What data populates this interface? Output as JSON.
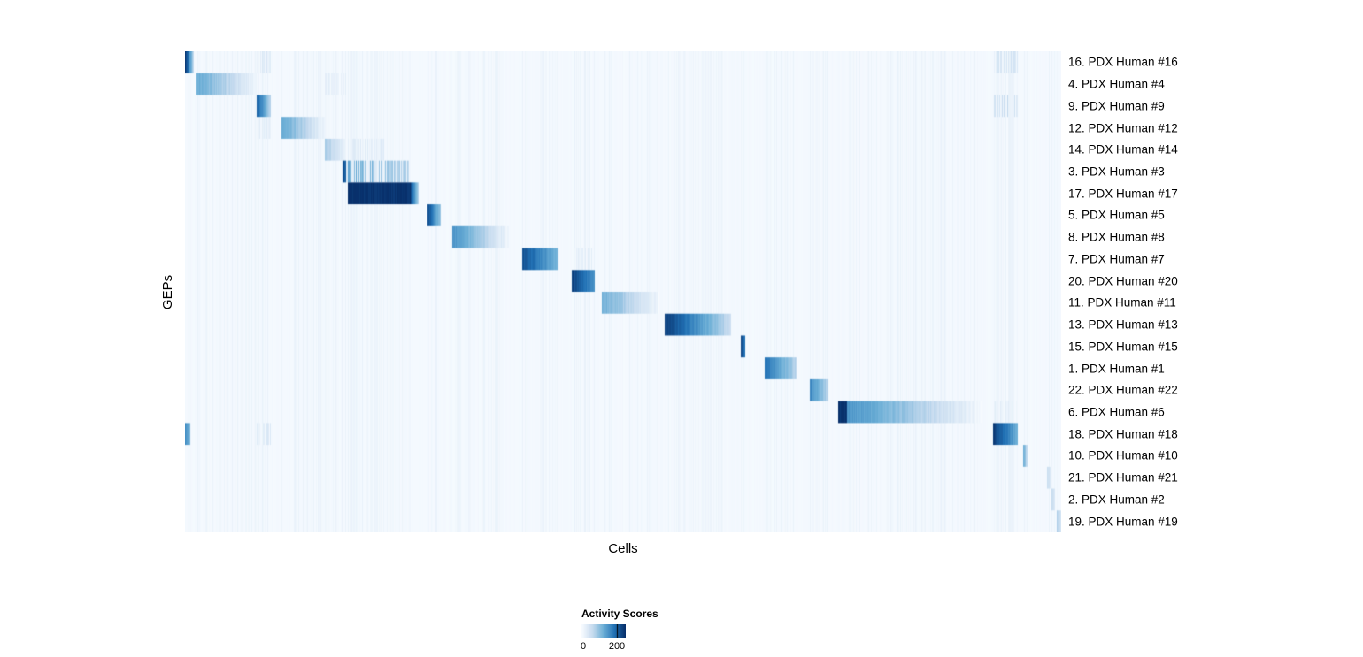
{
  "chart_data": {
    "type": "heatmap",
    "title": "",
    "xlabel": "Cells",
    "ylabel": "GEPs",
    "grid": false,
    "background_value": 2,
    "colorscale": {
      "name": "Blues",
      "stops": [
        "#f7fbff",
        "#c6dbef",
        "#6baed6",
        "#2171b5",
        "#08306b"
      ],
      "vmin": 0,
      "vmax": 250
    },
    "legend": {
      "title": "Activity Scores",
      "ticks": [
        0,
        200
      ],
      "tick_labels": [
        "0",
        "200"
      ],
      "position": "bottom"
    },
    "x_axis_note": "cells ordered by GEP assignment; x positions given as fractions 0-1 of the cell axis",
    "rows": [
      {
        "label": "16. PDX Human #16",
        "segments": [
          {
            "x0": 0.0,
            "x1": 0.01,
            "v0": 235,
            "v1": 70
          }
        ]
      },
      {
        "label": "4. PDX Human #4",
        "segments": [
          {
            "x0": 0.013,
            "x1": 0.085,
            "v0": 125,
            "v1": 8
          }
        ]
      },
      {
        "label": "9. PDX Human #9",
        "segments": [
          {
            "x0": 0.082,
            "x1": 0.098,
            "v0": 205,
            "v1": 70
          }
        ]
      },
      {
        "label": "12. PDX Human #12",
        "segments": [
          {
            "x0": 0.11,
            "x1": 0.16,
            "v0": 135,
            "v1": 10
          }
        ]
      },
      {
        "label": "14. PDX Human #14",
        "segments": [
          {
            "x0": 0.16,
            "x1": 0.184,
            "v0": 80,
            "v1": 15
          }
        ]
      },
      {
        "label": "3. PDX Human #3",
        "segments": [
          {
            "x0": 0.18,
            "x1": 0.184,
            "v0": 215,
            "v1": 200
          },
          {
            "x0": 0.184,
            "x1": 0.256,
            "v0": 150,
            "v1": 80,
            "striped": true
          }
        ]
      },
      {
        "label": "17. PDX Human #17",
        "segments": [
          {
            "x0": 0.186,
            "x1": 0.258,
            "v0": 250,
            "v1": 245
          },
          {
            "x0": 0.258,
            "x1": 0.267,
            "v0": 220,
            "v1": 70
          }
        ]
      },
      {
        "label": "5. PDX Human #5",
        "segments": [
          {
            "x0": 0.277,
            "x1": 0.292,
            "v0": 220,
            "v1": 95
          }
        ]
      },
      {
        "label": "8. PDX Human #8",
        "segments": [
          {
            "x0": 0.305,
            "x1": 0.37,
            "v0": 150,
            "v1": 10
          }
        ]
      },
      {
        "label": "7. PDX Human #7",
        "segments": [
          {
            "x0": 0.385,
            "x1": 0.426,
            "v0": 215,
            "v1": 110
          }
        ]
      },
      {
        "label": "20. PDX Human #20",
        "segments": [
          {
            "x0": 0.441,
            "x1": 0.468,
            "v0": 230,
            "v1": 150
          }
        ]
      },
      {
        "label": "11. PDX Human #11",
        "segments": [
          {
            "x0": 0.476,
            "x1": 0.541,
            "v0": 120,
            "v1": 8
          }
        ]
      },
      {
        "label": "13. PDX Human #13",
        "segments": [
          {
            "x0": 0.547,
            "x1": 0.623,
            "v0": 235,
            "v1": 55
          }
        ]
      },
      {
        "label": "15. PDX Human #15",
        "segments": [
          {
            "x0": 0.634,
            "x1": 0.639,
            "v0": 225,
            "v1": 190
          }
        ]
      },
      {
        "label": "1. PDX Human #1",
        "segments": [
          {
            "x0": 0.662,
            "x1": 0.698,
            "v0": 185,
            "v1": 70
          }
        ]
      },
      {
        "label": "22. PDX Human #22",
        "segments": [
          {
            "x0": 0.713,
            "x1": 0.734,
            "v0": 160,
            "v1": 70
          }
        ]
      },
      {
        "label": "6. PDX Human #6",
        "segments": [
          {
            "x0": 0.745,
            "x1": 0.756,
            "v0": 250,
            "v1": 245
          },
          {
            "x0": 0.756,
            "x1": 0.91,
            "v0": 150,
            "v1": 5
          }
        ]
      },
      {
        "label": "18. PDX Human #18",
        "segments": [
          {
            "x0": 0.0,
            "x1": 0.006,
            "v0": 150,
            "v1": 120
          },
          {
            "x0": 0.922,
            "x1": 0.951,
            "v0": 240,
            "v1": 120
          }
        ]
      },
      {
        "label": "10. PDX Human #10",
        "segments": [
          {
            "x0": 0.957,
            "x1": 0.962,
            "v0": 120,
            "v1": 60
          }
        ]
      },
      {
        "label": "21. PDX Human #21",
        "segments": [
          {
            "x0": 0.984,
            "x1": 0.988,
            "v0": 60,
            "v1": 40
          }
        ]
      },
      {
        "label": "2. PDX Human #2",
        "segments": [
          {
            "x0": 0.989,
            "x1": 0.993,
            "v0": 60,
            "v1": 40
          }
        ]
      },
      {
        "label": "19. PDX Human #19",
        "segments": [
          {
            "x0": 0.995,
            "x1": 1.0,
            "v0": 75,
            "v1": 50
          }
        ]
      }
    ],
    "cross_stripes": [
      {
        "row": 0,
        "x0": 0.922,
        "x1": 0.951,
        "v": 55
      },
      {
        "row": 2,
        "x0": 0.922,
        "x1": 0.951,
        "v": 70
      },
      {
        "row": 16,
        "x0": 0.922,
        "x1": 0.951,
        "v": 30
      },
      {
        "row": 0,
        "x0": 0.082,
        "x1": 0.098,
        "v": 40
      },
      {
        "row": 3,
        "x0": 0.082,
        "x1": 0.098,
        "v": 30
      },
      {
        "row": 17,
        "x0": 0.082,
        "x1": 0.098,
        "v": 40
      },
      {
        "row": 1,
        "x0": 0.16,
        "x1": 0.184,
        "v": 30
      },
      {
        "row": 4,
        "x0": 0.186,
        "x1": 0.23,
        "v": 35
      },
      {
        "row": 9,
        "x0": 0.441,
        "x1": 0.468,
        "v": 30
      }
    ]
  }
}
